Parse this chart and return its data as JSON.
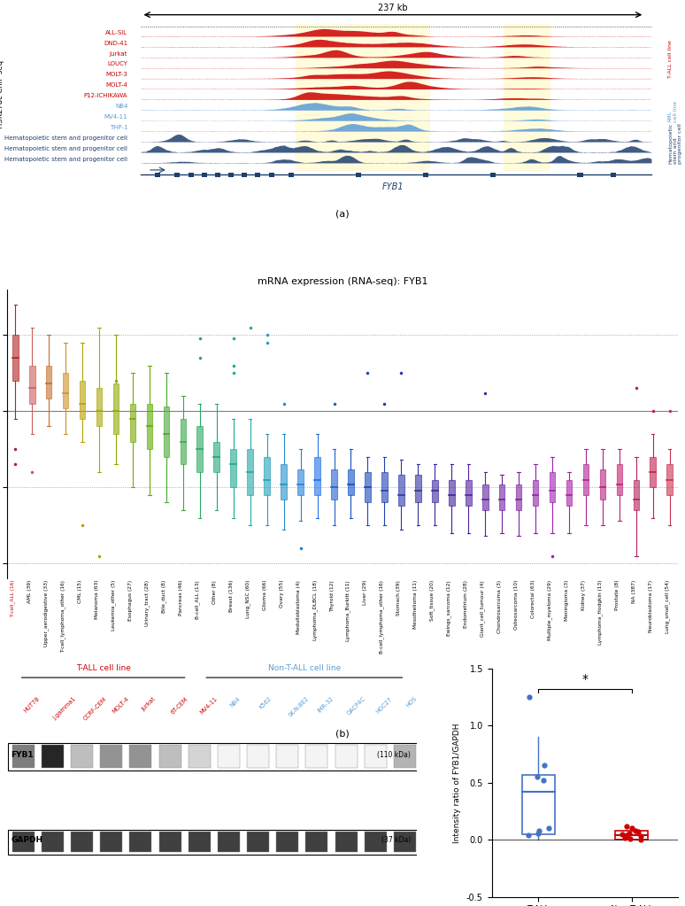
{
  "panel_a_title": "237 kb",
  "panel_a_tracks": [
    {
      "label": "ALL-SIL",
      "group": "T-ALL cell line",
      "color": "#cc0000"
    },
    {
      "label": "DND-41",
      "group": "T-ALL cell line",
      "color": "#cc0000"
    },
    {
      "label": "Jurkat",
      "group": "T-ALL cell line",
      "color": "#cc0000"
    },
    {
      "label": "LOUCY",
      "group": "T-ALL cell line",
      "color": "#cc0000"
    },
    {
      "label": "MOLT-3",
      "group": "T-ALL cell line",
      "color": "#cc0000"
    },
    {
      "label": "MOLT-4",
      "group": "T-ALL cell line",
      "color": "#cc0000"
    },
    {
      "label": "P12-ICHIKAWA",
      "group": "T-ALL cell line",
      "color": "#cc0000"
    },
    {
      "label": "NB4",
      "group": "AML cell line",
      "color": "#5b9bd5"
    },
    {
      "label": "MV4-11",
      "group": "AML cell line",
      "color": "#5b9bd5"
    },
    {
      "label": "THP-1",
      "group": "AML cell line",
      "color": "#5b9bd5"
    },
    {
      "label": "Hematopoietic stem and progenitor cell",
      "group": "Hematopoietic stem and progenitor cell",
      "color": "#1f3f6e"
    },
    {
      "label": "Hematopoietic stem and progenitor cell",
      "group": "Hematopoietic stem and progenitor cell",
      "color": "#1f3f6e"
    },
    {
      "label": "Hematopoietic stem and progenitor cell",
      "group": "Hematopoietic stem and progenitor cell",
      "color": "#1f3f6e"
    }
  ],
  "group_info": [
    {
      "label": "T-ALL cell line",
      "color": "#cc0000",
      "indices": [
        0,
        1,
        2,
        3,
        4,
        5,
        6
      ]
    },
    {
      "label": "AML\ncell line",
      "color": "#5b9bd5",
      "indices": [
        7,
        8,
        9
      ]
    },
    {
      "label": "Hematopoietic\nstem and\nprogenitor cell",
      "color": "#1f3f6e",
      "indices": [
        10,
        11,
        12
      ]
    }
  ],
  "panel_b_title": "mRNA expression (RNA-seq): FYB1",
  "boxplot_categories": [
    "T-cell_ALL (16)",
    "AML (39)",
    "Upper_aerodigestive (33)",
    "T-cell_lymphoma_other (16)",
    "CML (15)",
    "Melanoma (63)",
    "Leukemia_other (5)",
    "Esophagus (27)",
    "Urinary_tract (28)",
    "Bile_duct (8)",
    "Pancreas (46)",
    "B-cell_ALL (13)",
    "Other (8)",
    "Breast (136)",
    "Lung_NSC (60)",
    "Glioma (66)",
    "Ovary (55)",
    "Medulloblastoma (4)",
    "Lymphoma_DLBCL (18)",
    "Thyroid (12)",
    "Lymphoma_Burkitt (11)",
    "Liver (29)",
    "B-cell_lymphoma_other (16)",
    "Stomach (39)",
    "Mesothelioma (11)",
    "Soft_tissue (20)",
    "Ewings_sarcoma (12)",
    "Endometrium (28)",
    "Giant_cell_tumour (4)",
    "Chondrosarcoma (3)",
    "Osteosarcoma (10)",
    "Colorectal (63)",
    "Multiple_myeloma (29)",
    "Meningioma (3)",
    "Kidney (37)",
    "Lymphoma_Hodgkin (13)",
    "Prostate (8)",
    "NA (387)",
    "Neuroblastoma (17)",
    "Lung_small_cell (54)"
  ],
  "boxplot_colors": [
    "#b22222",
    "#cd5c5c",
    "#c46e2a",
    "#c8922a",
    "#b8a000",
    "#a8a800",
    "#8faa00",
    "#78a800",
    "#5faa00",
    "#48a832",
    "#38a848",
    "#28a860",
    "#20a878",
    "#20a890",
    "#20a8a8",
    "#20a0b8",
    "#2090c8",
    "#2080d8",
    "#2070e8",
    "#2060d0",
    "#1050c0",
    "#1848b8",
    "#2040b0",
    "#2838a8",
    "#3030a0",
    "#3828a0",
    "#4020a0",
    "#5020a0",
    "#6020a0",
    "#7020a0",
    "#8020a0",
    "#9020a8",
    "#a020b0",
    "#a820a0",
    "#b02090",
    "#b82080",
    "#c02070",
    "#b02060",
    "#c02050",
    "#c83050"
  ],
  "boxplot_data": [
    {
      "q1": 2.0,
      "median": 3.5,
      "q3": 5.0,
      "whisker_low": -0.5,
      "whisker_high": 7.0,
      "outliers": [
        -2.5,
        -3.5
      ]
    },
    {
      "q1": 0.5,
      "median": 1.5,
      "q3": 3.0,
      "whisker_low": -1.5,
      "whisker_high": 5.5,
      "outliers": [
        -4.0
      ]
    },
    {
      "q1": 0.8,
      "median": 1.8,
      "q3": 3.0,
      "whisker_low": -1.0,
      "whisker_high": 5.0,
      "outliers": []
    },
    {
      "q1": 0.2,
      "median": 1.2,
      "q3": 2.5,
      "whisker_low": -1.5,
      "whisker_high": 4.5,
      "outliers": []
    },
    {
      "q1": -0.5,
      "median": 0.5,
      "q3": 2.0,
      "whisker_low": -2.0,
      "whisker_high": 4.5,
      "outliers": [
        -7.5
      ]
    },
    {
      "q1": -1.0,
      "median": 0.0,
      "q3": 1.5,
      "whisker_low": -4.0,
      "whisker_high": 5.5,
      "outliers": [
        -9.5
      ]
    },
    {
      "q1": -1.5,
      "median": 0.0,
      "q3": 1.8,
      "whisker_low": -3.5,
      "whisker_high": 5.0,
      "outliers": [
        2.0
      ]
    },
    {
      "q1": -2.0,
      "median": -0.5,
      "q3": 0.5,
      "whisker_low": -5.0,
      "whisker_high": 2.5,
      "outliers": []
    },
    {
      "q1": -2.5,
      "median": -1.0,
      "q3": 0.5,
      "whisker_low": -5.5,
      "whisker_high": 3.0,
      "outliers": []
    },
    {
      "q1": -3.0,
      "median": -1.5,
      "q3": 0.3,
      "whisker_low": -6.0,
      "whisker_high": 2.5,
      "outliers": []
    },
    {
      "q1": -3.5,
      "median": -2.0,
      "q3": -0.5,
      "whisker_low": -6.5,
      "whisker_high": 1.0,
      "outliers": []
    },
    {
      "q1": -4.0,
      "median": -2.5,
      "q3": -1.0,
      "whisker_low": -7.0,
      "whisker_high": 0.5,
      "outliers": [
        3.5,
        4.8
      ]
    },
    {
      "q1": -4.0,
      "median": -3.0,
      "q3": -2.0,
      "whisker_low": -6.5,
      "whisker_high": 0.5,
      "outliers": []
    },
    {
      "q1": -5.0,
      "median": -3.5,
      "q3": -2.5,
      "whisker_low": -7.0,
      "whisker_high": -0.5,
      "outliers": [
        4.8,
        3.0,
        2.5
      ]
    },
    {
      "q1": -5.5,
      "median": -4.0,
      "q3": -2.5,
      "whisker_low": -7.5,
      "whisker_high": -0.5,
      "outliers": [
        5.5
      ]
    },
    {
      "q1": -5.5,
      "median": -4.5,
      "q3": -3.0,
      "whisker_low": -7.5,
      "whisker_high": -1.5,
      "outliers": [
        5.0,
        4.5
      ]
    },
    {
      "q1": -5.8,
      "median": -4.8,
      "q3": -3.5,
      "whisker_low": -7.8,
      "whisker_high": -1.5,
      "outliers": [
        0.5
      ]
    },
    {
      "q1": -5.5,
      "median": -4.8,
      "q3": -3.8,
      "whisker_low": -7.2,
      "whisker_high": -2.5,
      "outliers": [
        -9.0
      ]
    },
    {
      "q1": -5.5,
      "median": -4.5,
      "q3": -3.0,
      "whisker_low": -7.0,
      "whisker_high": -1.5,
      "outliers": []
    },
    {
      "q1": -5.8,
      "median": -5.0,
      "q3": -3.8,
      "whisker_low": -7.5,
      "whisker_high": -2.5,
      "outliers": [
        0.5
      ]
    },
    {
      "q1": -5.5,
      "median": -4.8,
      "q3": -3.8,
      "whisker_low": -7.0,
      "whisker_high": -2.5,
      "outliers": []
    },
    {
      "q1": -6.0,
      "median": -5.0,
      "q3": -4.0,
      "whisker_low": -7.5,
      "whisker_high": -3.0,
      "outliers": [
        2.5
      ]
    },
    {
      "q1": -6.0,
      "median": -5.2,
      "q3": -4.0,
      "whisker_low": -7.5,
      "whisker_high": -3.0,
      "outliers": [
        0.5
      ]
    },
    {
      "q1": -6.2,
      "median": -5.5,
      "q3": -4.2,
      "whisker_low": -7.8,
      "whisker_high": -3.2,
      "outliers": [
        2.5
      ]
    },
    {
      "q1": -6.0,
      "median": -5.2,
      "q3": -4.2,
      "whisker_low": -7.5,
      "whisker_high": -3.5,
      "outliers": []
    },
    {
      "q1": -6.0,
      "median": -5.2,
      "q3": -4.5,
      "whisker_low": -7.5,
      "whisker_high": -3.5,
      "outliers": []
    },
    {
      "q1": -6.2,
      "median": -5.5,
      "q3": -4.5,
      "whisker_low": -8.0,
      "whisker_high": -3.5,
      "outliers": []
    },
    {
      "q1": -6.2,
      "median": -5.5,
      "q3": -4.5,
      "whisker_low": -8.0,
      "whisker_high": -3.5,
      "outliers": []
    },
    {
      "q1": -6.5,
      "median": -5.8,
      "q3": -4.8,
      "whisker_low": -8.2,
      "whisker_high": -4.0,
      "outliers": [
        1.2
      ]
    },
    {
      "q1": -6.5,
      "median": -5.8,
      "q3": -4.8,
      "whisker_low": -8.0,
      "whisker_high": -4.2,
      "outliers": []
    },
    {
      "q1": -6.5,
      "median": -5.8,
      "q3": -4.8,
      "whisker_low": -8.2,
      "whisker_high": -4.0,
      "outliers": []
    },
    {
      "q1": -6.2,
      "median": -5.5,
      "q3": -4.5,
      "whisker_low": -8.0,
      "whisker_high": -3.5,
      "outliers": []
    },
    {
      "q1": -6.0,
      "median": -5.2,
      "q3": -4.0,
      "whisker_low": -8.0,
      "whisker_high": -3.0,
      "outliers": [
        -9.5
      ]
    },
    {
      "q1": -6.2,
      "median": -5.5,
      "q3": -4.5,
      "whisker_low": -8.0,
      "whisker_high": -4.0,
      "outliers": []
    },
    {
      "q1": -5.5,
      "median": -4.5,
      "q3": -3.5,
      "whisker_low": -7.5,
      "whisker_high": -2.5,
      "outliers": []
    },
    {
      "q1": -5.8,
      "median": -5.0,
      "q3": -3.8,
      "whisker_low": -7.5,
      "whisker_high": -2.5,
      "outliers": []
    },
    {
      "q1": -5.5,
      "median": -4.8,
      "q3": -3.5,
      "whisker_low": -7.2,
      "whisker_high": -2.5,
      "outliers": []
    },
    {
      "q1": -6.5,
      "median": -5.8,
      "q3": -4.5,
      "whisker_low": -9.5,
      "whisker_high": -3.0,
      "outliers": [
        1.5
      ]
    },
    {
      "q1": -5.0,
      "median": -4.0,
      "q3": -3.0,
      "whisker_low": -7.0,
      "whisker_high": -1.5,
      "outliers": [
        0.0
      ]
    },
    {
      "q1": -5.5,
      "median": -4.5,
      "q3": -3.5,
      "whisker_low": -7.5,
      "whisker_high": -2.5,
      "outliers": [
        0.0
      ]
    }
  ],
  "tall_samples": [
    "HUT78",
    "J.gamma1",
    "CCRF-CEM",
    "MOLT-4",
    "Jurkat",
    "6T-CEM",
    "MV4-11"
  ],
  "non_tall_samples": [
    "NB4",
    "K562",
    "SK-N-BE2",
    "IMR-32",
    "OACP4C",
    "HGC27",
    "HOS"
  ],
  "fyb1_intensities": [
    0.6,
    1.0,
    0.3,
    0.5,
    0.5,
    0.3,
    0.2,
    0.05,
    0.05,
    0.05,
    0.05,
    0.05,
    0.05,
    0.35
  ],
  "panel_d_tall_dots": [
    1.25,
    0.65,
    0.55,
    0.52,
    0.1,
    0.08,
    0.06,
    0.04
  ],
  "panel_d_short_dots": [
    0.12,
    0.1,
    0.08,
    0.07,
    0.06,
    0.05,
    0.04,
    0.03,
    0.02,
    0.01,
    0.005
  ],
  "panel_d_ylim": [
    -0.5,
    1.5
  ],
  "panel_d_yticks": [
    -0.5,
    0.0,
    0.5,
    1.0,
    1.5
  ],
  "panel_d_ylabel": "Intensity ratio of FYB1/GAPDH",
  "panel_d_groups": [
    "T-ALL\ncell line",
    "Non-T-ALL\ncell line"
  ],
  "panel_d_box_tall": {
    "q1": 0.05,
    "median": 0.42,
    "q3": 0.57,
    "whisker_low": 0.0,
    "whisker_high": 0.9
  },
  "panel_d_box_short": {
    "q1": 0.0,
    "median": 0.04,
    "q3": 0.08,
    "whisker_low": 0.0,
    "whisker_high": 0.12
  },
  "tall_color": "#4472c4",
  "nontall_color": "#cc0000",
  "red_color": "#cc0000",
  "blue_color": "#5b9bd5",
  "navy_color": "#1f3f6e"
}
